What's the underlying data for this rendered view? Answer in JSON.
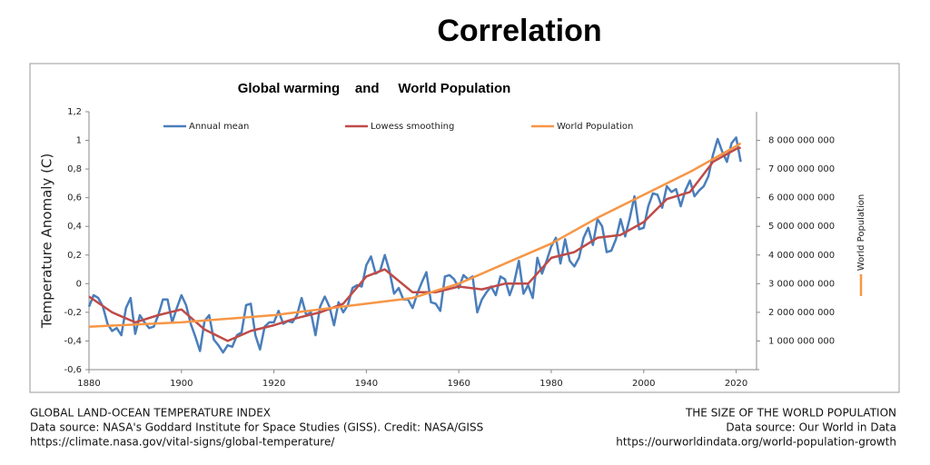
{
  "chart_data": {
    "type": "line",
    "title": "Correlation",
    "subtitle": "Global warming    and     World Population",
    "y_label": "Temperature Anomaly (C)",
    "y2_label": "World Population",
    "xlim": [
      1880,
      2025
    ],
    "xticks": [
      1880,
      1900,
      1920,
      1940,
      1960,
      1980,
      2000,
      2020
    ],
    "ylim": [
      -0.6,
      1.2
    ],
    "yticks": [
      {
        "value": -0.6,
        "label": "-0,6"
      },
      {
        "value": -0.4,
        "label": "-0,4"
      },
      {
        "value": -0.2,
        "label": "-0,2"
      },
      0,
      {
        "value": 0.2,
        "label": "0,2"
      },
      {
        "value": 0.4,
        "label": "0,4"
      },
      {
        "value": 0.6,
        "label": "0,6"
      },
      {
        "value": 0.8,
        "label": "0,8"
      },
      1,
      {
        "value": 1.2,
        "label": "1,2"
      }
    ],
    "y2lim": [
      0,
      9000000000
    ],
    "y2ticks": [
      {
        "value": 1000000000,
        "label": "1 000 000 000"
      },
      {
        "value": 2000000000,
        "label": "2 000 000 000"
      },
      {
        "value": 3000000000,
        "label": "3 000 000 000"
      },
      {
        "value": 4000000000,
        "label": "4 000 000 000"
      },
      {
        "value": 5000000000,
        "label": "5 000 000 000"
      },
      {
        "value": 6000000000,
        "label": "6 000 000 000"
      },
      {
        "value": 7000000000,
        "label": "7 000 000 000"
      },
      {
        "value": 8000000000,
        "label": "8 000 000 000"
      }
    ],
    "grid": false,
    "series": [
      {
        "name": "Annual mean",
        "color": "#4a7ebb",
        "x": [
          1880,
          1881,
          1882,
          1883,
          1884,
          1885,
          1886,
          1887,
          1888,
          1889,
          1890,
          1891,
          1892,
          1893,
          1894,
          1895,
          1896,
          1897,
          1898,
          1899,
          1900,
          1901,
          1902,
          1903,
          1904,
          1905,
          1906,
          1907,
          1908,
          1909,
          1910,
          1911,
          1912,
          1913,
          1914,
          1915,
          1916,
          1917,
          1918,
          1919,
          1920,
          1921,
          1922,
          1923,
          1924,
          1925,
          1926,
          1927,
          1928,
          1929,
          1930,
          1931,
          1932,
          1933,
          1934,
          1935,
          1936,
          1937,
          1938,
          1939,
          1940,
          1941,
          1942,
          1943,
          1944,
          1945,
          1946,
          1947,
          1948,
          1949,
          1950,
          1951,
          1952,
          1953,
          1954,
          1955,
          1956,
          1957,
          1958,
          1959,
          1960,
          1961,
          1962,
          1963,
          1964,
          1965,
          1966,
          1967,
          1968,
          1969,
          1970,
          1971,
          1972,
          1973,
          1974,
          1975,
          1976,
          1977,
          1978,
          1979,
          1980,
          1981,
          1982,
          1983,
          1984,
          1985,
          1986,
          1987,
          1988,
          1989,
          1990,
          1991,
          1992,
          1993,
          1994,
          1995,
          1996,
          1997,
          1998,
          1999,
          2000,
          2001,
          2002,
          2003,
          2004,
          2005,
          2006,
          2007,
          2008,
          2009,
          2010,
          2011,
          2012,
          2013,
          2014,
          2015,
          2016,
          2017,
          2018,
          2019,
          2020,
          2021
        ],
        "values": [
          -0.16,
          -0.08,
          -0.1,
          -0.16,
          -0.28,
          -0.33,
          -0.31,
          -0.36,
          -0.17,
          -0.1,
          -0.35,
          -0.22,
          -0.27,
          -0.31,
          -0.3,
          -0.22,
          -0.11,
          -0.11,
          -0.27,
          -0.17,
          -0.08,
          -0.15,
          -0.28,
          -0.37,
          -0.47,
          -0.26,
          -0.22,
          -0.39,
          -0.43,
          -0.48,
          -0.43,
          -0.44,
          -0.36,
          -0.34,
          -0.15,
          -0.14,
          -0.36,
          -0.46,
          -0.3,
          -0.27,
          -0.27,
          -0.19,
          -0.28,
          -0.26,
          -0.27,
          -0.22,
          -0.1,
          -0.22,
          -0.2,
          -0.36,
          -0.16,
          -0.09,
          -0.16,
          -0.29,
          -0.13,
          -0.2,
          -0.15,
          -0.03,
          -0.01,
          -0.02,
          0.13,
          0.19,
          0.07,
          0.09,
          0.2,
          0.09,
          -0.07,
          -0.03,
          -0.11,
          -0.11,
          -0.17,
          -0.07,
          0.01,
          0.08,
          -0.13,
          -0.14,
          -0.19,
          0.05,
          0.06,
          0.03,
          -0.03,
          0.06,
          0.03,
          0.05,
          -0.2,
          -0.11,
          -0.06,
          -0.02,
          -0.08,
          0.05,
          0.03,
          -0.08,
          0.01,
          0.16,
          -0.07,
          -0.01,
          -0.1,
          0.18,
          0.07,
          0.16,
          0.26,
          0.32,
          0.14,
          0.31,
          0.16,
          0.12,
          0.18,
          0.32,
          0.39,
          0.27,
          0.45,
          0.4,
          0.22,
          0.23,
          0.31,
          0.45,
          0.33,
          0.46,
          0.61,
          0.38,
          0.39,
          0.54,
          0.63,
          0.62,
          0.53,
          0.68,
          0.64,
          0.66,
          0.54,
          0.65,
          0.72,
          0.61,
          0.65,
          0.68,
          0.75,
          0.9,
          1.01,
          0.92,
          0.85,
          0.98,
          1.02,
          0.85
        ]
      },
      {
        "name": "Lowess smoothing",
        "color": "#be4b48",
        "x": [
          1880,
          1885,
          1890,
          1895,
          1900,
          1905,
          1910,
          1915,
          1920,
          1925,
          1930,
          1935,
          1940,
          1944,
          1950,
          1955,
          1960,
          1965,
          1970,
          1975,
          1980,
          1985,
          1990,
          1995,
          2000,
          2005,
          2010,
          2015,
          2020,
          2021
        ],
        "values": [
          -0.09,
          -0.2,
          -0.27,
          -0.22,
          -0.18,
          -0.32,
          -0.4,
          -0.33,
          -0.29,
          -0.24,
          -0.2,
          -0.14,
          0.05,
          0.1,
          -0.06,
          -0.06,
          -0.02,
          -0.04,
          0.0,
          0.0,
          0.18,
          0.22,
          0.32,
          0.34,
          0.43,
          0.59,
          0.64,
          0.85,
          0.94,
          0.95
        ]
      },
      {
        "name": "World Population",
        "color": "#f79646",
        "axis": "y2",
        "x": [
          1880,
          1900,
          1920,
          1940,
          1950,
          1960,
          1970,
          1980,
          1990,
          2000,
          2010,
          2020,
          2021
        ],
        "values": [
          1500000000,
          1650000000,
          1900000000,
          2300000000,
          2500000000,
          3000000000,
          3700000000,
          4400000000,
          5300000000,
          6100000000,
          6900000000,
          7800000000,
          7900000000
        ]
      }
    ],
    "footer_left": [
      "GLOBAL LAND-OCEAN TEMPERATURE INDEX",
      "Data source: NASA's Goddard Institute for Space Studies (GISS). Credit: NASA/GISS",
      "https://climate.nasa.gov/vital-signs/global-temperature/"
    ],
    "footer_right": [
      "THE SIZE OF THE WORLD POPULATION",
      "Data source: Our World in Data",
      "https://ourworldindata.org/world-population-growth"
    ]
  }
}
